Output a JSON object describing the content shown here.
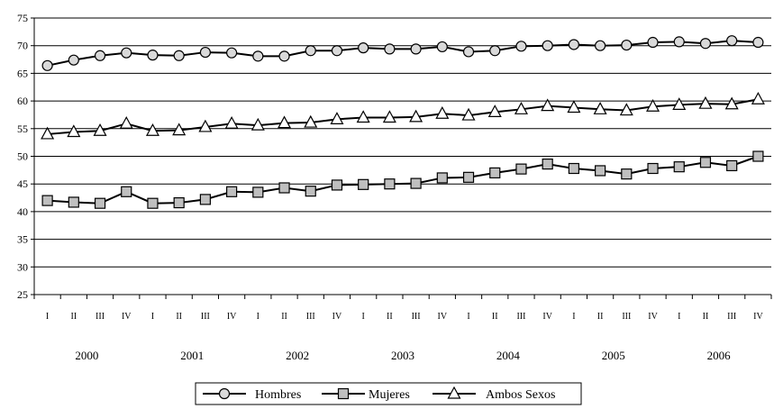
{
  "chart_data": {
    "type": "line",
    "title": "",
    "xlabel": "",
    "ylabel": "",
    "ylim": [
      25,
      75
    ],
    "yticks": [
      25,
      30,
      35,
      40,
      45,
      50,
      55,
      60,
      65,
      70,
      75
    ],
    "grid": "horizontal",
    "legend_position": "bottom-center",
    "quarters": [
      "I",
      "II",
      "III",
      "IV",
      "I",
      "II",
      "III",
      "IV",
      "I",
      "II",
      "III",
      "IV",
      "I",
      "II",
      "III",
      "IV",
      "I",
      "II",
      "III",
      "IV",
      "I",
      "II",
      "III",
      "IV",
      "I",
      "II",
      "III",
      "IV"
    ],
    "years": [
      "2000",
      "2001",
      "2002",
      "2003",
      "2004",
      "2005",
      "2006"
    ],
    "series": [
      {
        "name": "Hombres",
        "marker": "circle",
        "values": [
          66.4,
          67.4,
          68.2,
          68.7,
          68.3,
          68.2,
          68.8,
          68.7,
          68.1,
          68.1,
          69.1,
          69.1,
          69.6,
          69.4,
          69.4,
          69.8,
          68.9,
          69.1,
          69.9,
          70.0,
          70.2,
          70.0,
          70.1,
          70.6,
          70.7,
          70.4,
          70.9,
          70.6
        ]
      },
      {
        "name": "Mujeres",
        "marker": "square",
        "values": [
          42.0,
          41.7,
          41.5,
          43.6,
          41.5,
          41.6,
          42.2,
          43.6,
          43.5,
          44.3,
          43.7,
          44.8,
          44.9,
          45.0,
          45.1,
          46.1,
          46.2,
          47.0,
          47.7,
          48.6,
          47.8,
          47.4,
          46.8,
          47.8,
          48.1,
          48.9,
          48.3,
          50.0
        ]
      },
      {
        "name": "Ambos Sexos",
        "marker": "triangle",
        "values": [
          54.0,
          54.4,
          54.6,
          55.9,
          54.6,
          54.7,
          55.3,
          55.9,
          55.6,
          56.0,
          56.1,
          56.7,
          57.0,
          57.0,
          57.1,
          57.7,
          57.4,
          58.0,
          58.5,
          59.1,
          58.8,
          58.5,
          58.3,
          59.0,
          59.3,
          59.5,
          59.4,
          60.3
        ]
      }
    ]
  }
}
